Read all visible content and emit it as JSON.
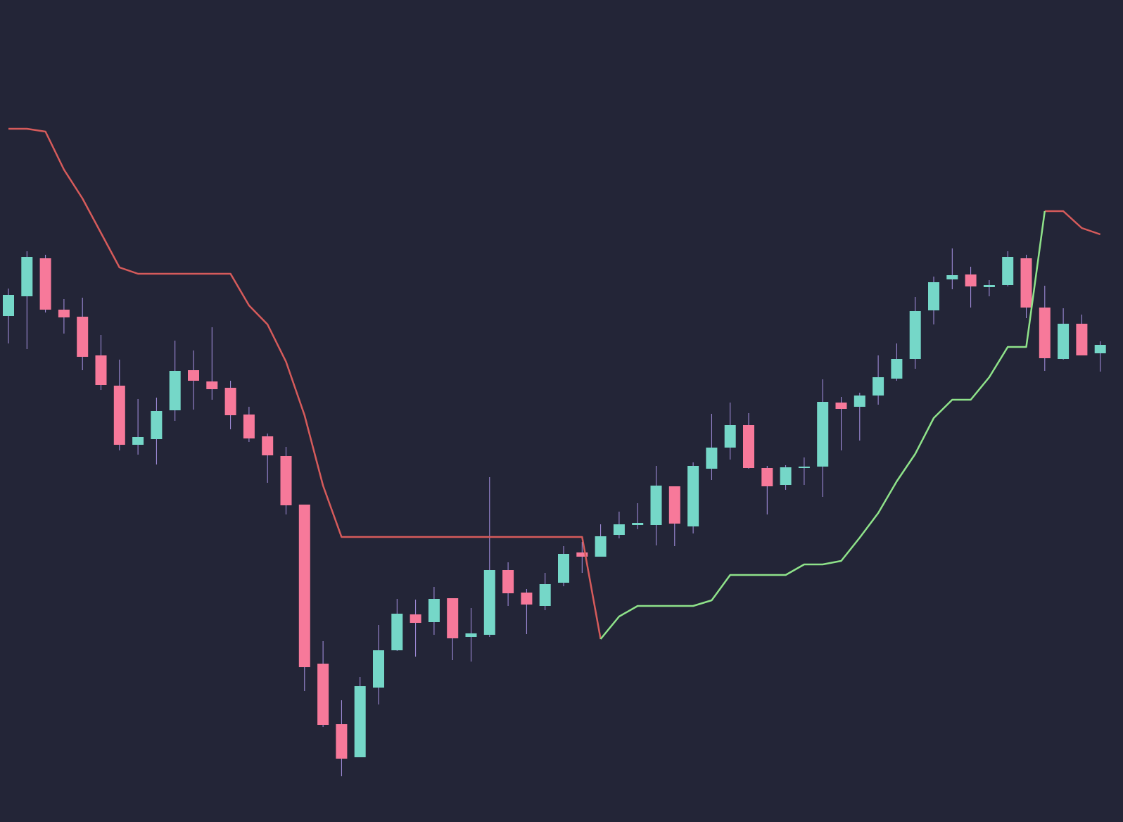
{
  "chart_data": {
    "type": "candlestick",
    "ylim": [
      0,
      116.8
    ],
    "up_color": "#75d7c8",
    "down_color": "#f7799a",
    "wick_color": "#a994e6",
    "open": [
      71.9,
      74.7,
      80.1,
      72.8,
      71.8,
      66.3,
      62.0,
      53.6,
      54.4,
      58.5,
      64.2,
      62.6,
      61.7,
      57.9,
      54.8,
      52.0,
      45.1,
      22.5,
      13.9,
      9.2,
      19.1,
      24.4,
      29.5,
      28.4,
      31.8,
      26.3,
      26.6,
      35.8,
      32.6,
      30.7,
      34.0,
      38.3,
      37.7,
      40.8,
      42.2,
      42.2,
      47.7,
      42.0,
      50.2,
      53.2,
      56.4,
      50.3,
      47.9,
      50.3,
      50.5,
      59.6,
      59.0,
      60.6,
      63.0,
      65.8,
      72.7,
      77.1,
      77.8,
      76.0,
      76.3,
      80.1,
      73.1,
      65.8,
      70.8,
      66.6
    ],
    "high": [
      75.8,
      81.1,
      80.6,
      74.3,
      74.5,
      69.2,
      65.7,
      60.1,
      60.3,
      68.4,
      67.0,
      70.3,
      62.7,
      59.0,
      55.2,
      53.3,
      45.1,
      25.7,
      17.3,
      20.6,
      28.0,
      31.7,
      31.6,
      33.4,
      31.8,
      30.4,
      49.0,
      36.9,
      33.1,
      35.4,
      39.2,
      39.8,
      42.3,
      44.1,
      45.3,
      50.6,
      47.7,
      51.1,
      58.0,
      59.6,
      58.1,
      50.6,
      50.7,
      51.8,
      62.9,
      60.4,
      61.0,
      66.3,
      68.0,
      74.6,
      77.5,
      81.5,
      78.9,
      77.0,
      81.1,
      80.6,
      76.2,
      73.0,
      72.1,
      68.3
    ],
    "low": [
      68.0,
      67.2,
      72.4,
      69.4,
      64.2,
      61.4,
      52.8,
      52.2,
      50.8,
      57.0,
      58.6,
      60.0,
      55.8,
      54.0,
      48.2,
      43.7,
      18.6,
      13.5,
      6.5,
      9.2,
      16.7,
      24.3,
      23.5,
      26.6,
      23.0,
      22.8,
      26.3,
      30.7,
      26.7,
      30.1,
      33.5,
      35.4,
      37.7,
      40.3,
      41.6,
      39.3,
      39.2,
      41.0,
      48.6,
      51.5,
      50.2,
      43.7,
      47.2,
      47.9,
      46.2,
      52.8,
      54.2,
      59.3,
      62.7,
      64.4,
      70.7,
      75.7,
      73.1,
      74.7,
      76.1,
      71.6,
      64.1,
      65.7,
      66.3,
      64.0
    ],
    "close": [
      74.9,
      80.3,
      72.8,
      71.7,
      66.1,
      62.1,
      53.6,
      54.7,
      58.4,
      64.1,
      62.7,
      61.5,
      57.8,
      54.5,
      52.1,
      45.0,
      22.0,
      13.8,
      9.0,
      19.3,
      24.4,
      29.6,
      28.3,
      31.7,
      26.1,
      26.8,
      35.8,
      32.5,
      30.9,
      33.8,
      38.1,
      37.7,
      40.6,
      42.3,
      42.5,
      47.8,
      42.4,
      50.6,
      53.2,
      56.4,
      50.3,
      47.7,
      50.4,
      50.5,
      59.7,
      58.7,
      60.6,
      63.2,
      65.8,
      72.6,
      76.7,
      77.7,
      76.1,
      76.3,
      80.3,
      73.1,
      65.9,
      70.8,
      66.3,
      67.8
    ],
    "lines": [
      {
        "color": "#d65b5b",
        "values": [
          98.5,
          98.5,
          98.1,
          92.7,
          88.6,
          83.7,
          78.8,
          77.9,
          77.9,
          77.9,
          77.9,
          77.9,
          77.9,
          73.4,
          70.7,
          65.4,
          57.8,
          47.8,
          40.5,
          40.5,
          40.5,
          40.5,
          40.5,
          40.5,
          40.5,
          40.5,
          40.5,
          40.5,
          40.5,
          40.5,
          40.5,
          40.5,
          26.0,
          null,
          null,
          null,
          null,
          null,
          null,
          null,
          null,
          null,
          null,
          null,
          null,
          null,
          null,
          null,
          null,
          null,
          null,
          null,
          null,
          null,
          null,
          null,
          86.8,
          86.8,
          84.4,
          83.5
        ]
      },
      {
        "color": "#8fe38a",
        "values": [
          null,
          null,
          null,
          null,
          null,
          null,
          null,
          null,
          null,
          null,
          null,
          null,
          null,
          null,
          null,
          null,
          null,
          null,
          null,
          null,
          null,
          null,
          null,
          null,
          null,
          null,
          null,
          null,
          null,
          null,
          null,
          null,
          26.0,
          29.2,
          30.7,
          30.7,
          30.7,
          30.7,
          31.5,
          35.1,
          35.1,
          35.1,
          35.1,
          36.6,
          36.6,
          37.1,
          40.4,
          43.9,
          48.4,
          52.3,
          57.4,
          60.0,
          60.0,
          63.2,
          67.5,
          67.5,
          86.8,
          null,
          null,
          null
        ]
      }
    ]
  }
}
